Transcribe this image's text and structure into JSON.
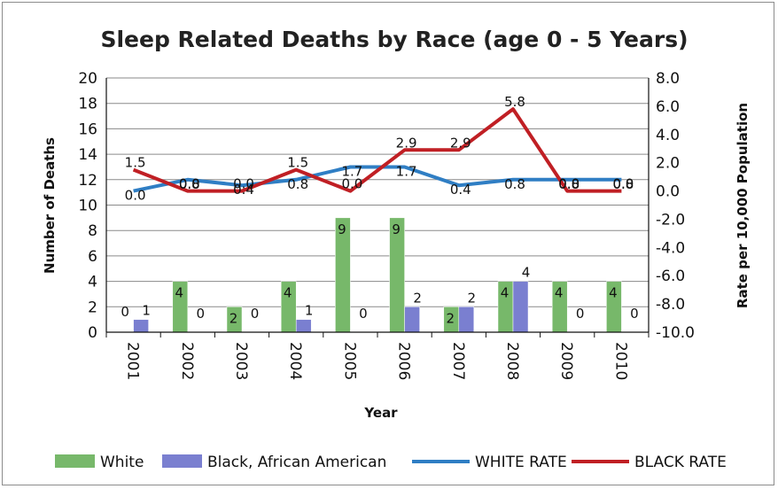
{
  "chart_data": {
    "type": "bar",
    "title": "Sleep Related Deaths by Race (age 0 - 5 Years)",
    "xlabel": "Year",
    "ylabel": "Number of Deaths",
    "y2label": "Rate per 10,000 Population",
    "categories": [
      "2001",
      "2002",
      "2003",
      "2004",
      "2005",
      "2006",
      "2007",
      "2008",
      "2009",
      "2010"
    ],
    "ylim": [
      0,
      20
    ],
    "yticks": [
      "0",
      "2",
      "4",
      "6",
      "8",
      "10",
      "12",
      "14",
      "16",
      "18",
      "20"
    ],
    "y2lim": [
      -10,
      8
    ],
    "y2ticks": [
      "-10.0",
      "-8.0",
      "-6.0",
      "-4.0",
      "-2.0",
      "0.0",
      "2.0",
      "4.0",
      "6.0",
      "8.0"
    ],
    "grid": true,
    "legend_position": "bottom",
    "bar_series": [
      {
        "name": "White",
        "color": "#77b86a",
        "values": [
          0,
          4,
          2,
          4,
          9,
          9,
          2,
          4,
          4,
          4
        ]
      },
      {
        "name": "Black, African American",
        "color": "#7a7fd0",
        "values": [
          1,
          0,
          0,
          1,
          0,
          2,
          2,
          4,
          0,
          0
        ]
      }
    ],
    "line_series": [
      {
        "name": "WHITE RATE",
        "color": "#2f7ec4",
        "axis": "right",
        "values": [
          0.0,
          0.8,
          0.4,
          0.8,
          1.7,
          1.7,
          0.4,
          0.8,
          0.8,
          0.8
        ],
        "labels": [
          "0.0",
          "0.8",
          "0.4",
          "0.8",
          "1.7",
          "1.7",
          "0.4",
          "0.8",
          "0.8",
          "0.8"
        ]
      },
      {
        "name": "BLACK RATE",
        "color": "#c01f24",
        "axis": "right",
        "values": [
          1.5,
          0.0,
          0.0,
          1.5,
          0.0,
          2.9,
          2.9,
          5.8,
          0.0,
          0.0
        ],
        "labels": [
          "1.5",
          "0.0",
          "0.0",
          "1.5",
          "0.0",
          "2.9",
          "2.9",
          "5.8",
          "0.0",
          "0.0"
        ]
      }
    ]
  }
}
